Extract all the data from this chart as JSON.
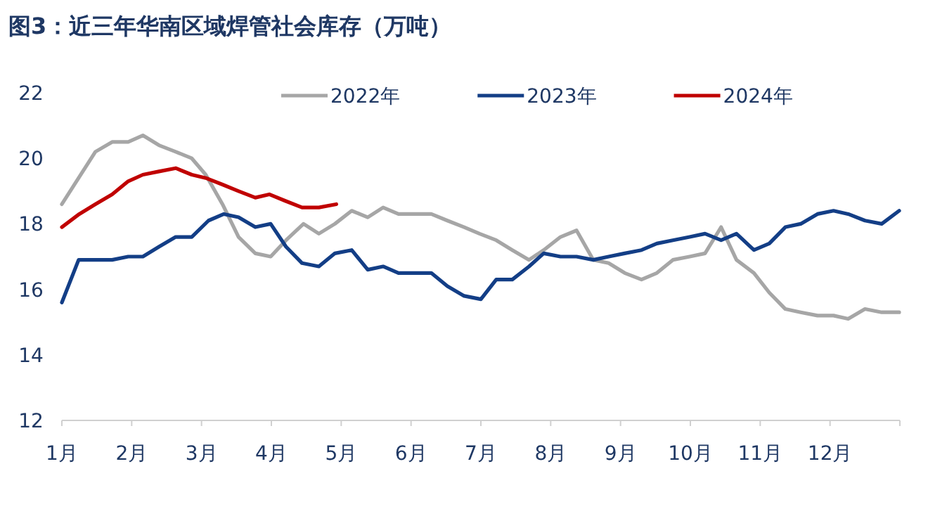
{
  "chart_data": {
    "type": "line",
    "title": "图3：近三年华南区域焊管社会库存（万吨）",
    "xlim": [
      1,
      13
    ],
    "xticks": [
      {
        "value": 1,
        "label": "1月"
      },
      {
        "value": 2,
        "label": "2月"
      },
      {
        "value": 3,
        "label": "3月"
      },
      {
        "value": 4,
        "label": "4月"
      },
      {
        "value": 5,
        "label": "5月"
      },
      {
        "value": 6,
        "label": "6月"
      },
      {
        "value": 7,
        "label": "7月"
      },
      {
        "value": 8,
        "label": "8月"
      },
      {
        "value": 9,
        "label": "9月"
      },
      {
        "value": 10,
        "label": "10月"
      },
      {
        "value": 11,
        "label": "11月"
      },
      {
        "value": 12,
        "label": "12月"
      },
      {
        "value": 13,
        "label": null
      }
    ],
    "ylim": [
      12,
      22
    ],
    "yticks": [
      12,
      14,
      16,
      18,
      20,
      22
    ],
    "grid": false,
    "legend": "top",
    "marker": "none",
    "line_style": "solid",
    "series": [
      {
        "name": "2022年",
        "color": "#a6a6a6",
        "x": [
          1.0,
          1.24,
          1.48,
          1.72,
          1.95,
          2.16,
          2.39,
          2.63,
          2.86,
          3.06,
          3.3,
          3.53,
          3.77,
          3.99,
          4.21,
          4.46,
          4.68,
          4.91,
          5.15,
          5.38,
          5.6,
          5.82,
          6.05,
          6.29,
          6.52,
          6.76,
          6.98,
          7.22,
          7.45,
          7.69,
          7.9,
          8.14,
          8.37,
          8.61,
          8.83,
          9.06,
          9.3,
          9.52,
          9.75,
          9.99,
          10.21,
          10.44,
          10.66,
          10.91,
          11.13,
          11.36,
          11.58,
          11.82,
          12.05,
          12.26,
          12.5,
          12.74,
          12.99
        ],
        "values": [
          18.6,
          19.4,
          20.2,
          20.5,
          20.5,
          20.7,
          20.4,
          20.2,
          20.0,
          19.5,
          18.6,
          17.6,
          17.1,
          17.0,
          17.5,
          18.0,
          17.7,
          18.0,
          18.4,
          18.2,
          18.5,
          18.3,
          18.3,
          18.3,
          18.1,
          17.9,
          17.7,
          17.5,
          17.2,
          16.9,
          17.2,
          17.6,
          17.8,
          16.9,
          16.8,
          16.5,
          16.3,
          16.5,
          16.9,
          17.0,
          17.1,
          17.9,
          16.9,
          16.5,
          15.9,
          15.4,
          15.3,
          15.2,
          15.2,
          15.1,
          15.4,
          15.3,
          15.3
        ]
      },
      {
        "name": "2023年",
        "color": "#133e86",
        "x": [
          1.0,
          1.24,
          1.48,
          1.72,
          1.95,
          2.16,
          2.39,
          2.63,
          2.86,
          3.1,
          3.32,
          3.53,
          3.77,
          3.99,
          4.21,
          4.44,
          4.68,
          4.91,
          5.15,
          5.38,
          5.6,
          5.82,
          6.05,
          6.29,
          6.52,
          6.76,
          7.0,
          7.22,
          7.45,
          7.69,
          7.9,
          8.14,
          8.37,
          8.61,
          8.83,
          9.06,
          9.3,
          9.52,
          9.75,
          9.99,
          10.21,
          10.44,
          10.66,
          10.91,
          11.13,
          11.36,
          11.58,
          11.82,
          12.05,
          12.26,
          12.5,
          12.74,
          12.99
        ],
        "values": [
          15.6,
          16.9,
          16.9,
          16.9,
          17.0,
          17.0,
          17.3,
          17.6,
          17.6,
          18.1,
          18.3,
          18.2,
          17.9,
          18.0,
          17.3,
          16.8,
          16.7,
          17.1,
          17.2,
          16.6,
          16.7,
          16.5,
          16.5,
          16.5,
          16.1,
          15.8,
          15.7,
          16.3,
          16.3,
          16.7,
          17.1,
          17.0,
          17.0,
          16.9,
          17.0,
          17.1,
          17.2,
          17.4,
          17.5,
          17.6,
          17.7,
          17.5,
          17.7,
          17.2,
          17.4,
          17.9,
          18.0,
          18.3,
          18.4,
          18.3,
          18.1,
          18.0,
          18.4
        ]
      },
      {
        "name": "2024年",
        "color": "#c00000",
        "x": [
          1.0,
          1.25,
          1.48,
          1.72,
          1.95,
          2.16,
          2.39,
          2.63,
          2.86,
          3.06,
          3.3,
          3.53,
          3.77,
          3.97,
          4.2,
          4.44,
          4.68,
          4.93
        ],
        "values": [
          17.9,
          18.3,
          18.6,
          18.9,
          19.3,
          19.5,
          19.6,
          19.7,
          19.5,
          19.4,
          19.2,
          19.0,
          18.8,
          18.9,
          18.7,
          18.5,
          18.5,
          18.6
        ]
      }
    ]
  }
}
